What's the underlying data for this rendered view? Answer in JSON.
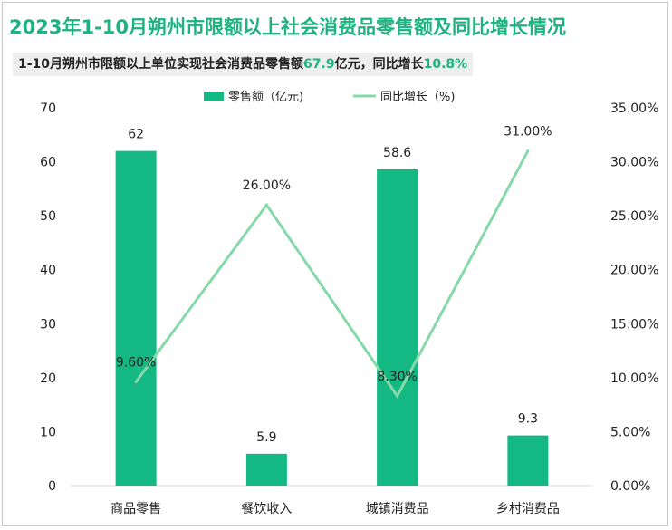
{
  "title": "2023年1-10月朔州市限额以上社会消费品零售额及同比增长情况",
  "subtitle": {
    "prefix": "1-10月朔州市限额以上单位实现社会消费品零售额",
    "amount": "67.9",
    "middle": "亿元，同比增长",
    "growth": "10.8%"
  },
  "colors": {
    "bar": "#13b882",
    "line": "#86d9a8",
    "title": "#1db27e"
  },
  "chart_data": {
    "type": "bar+line",
    "categories": [
      "商品零售",
      "餐饮收入",
      "城镇消费品",
      "乡村消费品"
    ],
    "series": [
      {
        "name": "零售额（亿元)",
        "type": "bar",
        "axis": "left",
        "values": [
          62,
          5.9,
          58.6,
          9.3
        ],
        "labels": [
          "62",
          "5.9",
          "58.6",
          "9.3"
        ]
      },
      {
        "name": "同比增长（%)",
        "type": "line",
        "axis": "right",
        "values": [
          9.6,
          26.0,
          8.3,
          31.0
        ],
        "labels": [
          "9.60%",
          "26.00%",
          "8.30%",
          "31.00%"
        ]
      }
    ],
    "left_axis": {
      "min": 0,
      "max": 70,
      "ticks": [
        "0",
        "10",
        "20",
        "30",
        "40",
        "50",
        "60",
        "70"
      ]
    },
    "right_axis": {
      "min": 0,
      "max": 35,
      "ticks": [
        "0.00%",
        "5.00%",
        "10.00%",
        "15.00%",
        "20.00%",
        "25.00%",
        "30.00%",
        "35.00%"
      ]
    },
    "legend_position": "top-center"
  }
}
